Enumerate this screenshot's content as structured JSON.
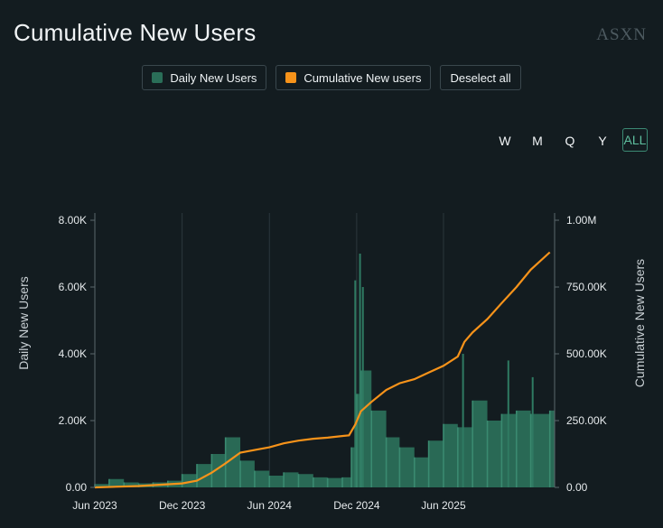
{
  "page": {
    "title": "Cumulative New Users",
    "brand": "ASXN"
  },
  "legend": {
    "daily_label": "Daily New Users",
    "cumulative_label": "Cumulative New users",
    "deselect_label": "Deselect all"
  },
  "ranges": [
    "W",
    "M",
    "Q",
    "Y",
    "ALL"
  ],
  "active_range": "ALL",
  "colors": {
    "daily": "#2a6e58",
    "cumulative": "#f7931a",
    "background": "#131c20"
  },
  "chart_data": {
    "type": "bar",
    "title": "Cumulative New Users",
    "x_tick_labels": [
      "Jun 2023",
      "Dec 2023",
      "Jun 2024",
      "Dec 2024",
      "Jun 2025"
    ],
    "y_left": {
      "label": "Daily New Users",
      "range": [
        0,
        8000
      ],
      "tick_labels": [
        "0.00",
        "2.00K",
        "4.00K",
        "6.00K",
        "8.00K"
      ]
    },
    "y_right": {
      "label": "Cumulative New Users",
      "range": [
        0,
        1000000
      ],
      "tick_labels": [
        "0.00",
        "250.00K",
        "500.00K",
        "750.00K",
        "1.00M"
      ]
    },
    "series": [
      {
        "name": "Daily New Users",
        "kind": "bar",
        "color": "#2a6e58",
        "points": [
          [
            "2023-06-01",
            100
          ],
          [
            "2023-07-01",
            250
          ],
          [
            "2023-08-01",
            150
          ],
          [
            "2023-09-01",
            120
          ],
          [
            "2023-10-01",
            150
          ],
          [
            "2023-11-01",
            200
          ],
          [
            "2023-12-01",
            400
          ],
          [
            "2024-01-01",
            700
          ],
          [
            "2024-02-01",
            1000
          ],
          [
            "2024-03-01",
            1500
          ],
          [
            "2024-04-01",
            800
          ],
          [
            "2024-05-01",
            500
          ],
          [
            "2024-06-01",
            350
          ],
          [
            "2024-07-01",
            450
          ],
          [
            "2024-08-01",
            400
          ],
          [
            "2024-09-01",
            300
          ],
          [
            "2024-10-01",
            280
          ],
          [
            "2024-11-01",
            300
          ],
          [
            "2024-11-20",
            1200
          ],
          [
            "2024-12-01",
            2800
          ],
          [
            "2024-12-10",
            3500
          ],
          [
            "2025-01-01",
            2300
          ],
          [
            "2025-02-01",
            1500
          ],
          [
            "2025-03-01",
            1200
          ],
          [
            "2025-04-01",
            900
          ],
          [
            "2025-05-01",
            1400
          ],
          [
            "2025-06-01",
            1900
          ],
          [
            "2025-07-01",
            1800
          ],
          [
            "2025-08-01",
            2600
          ],
          [
            "2025-09-01",
            2000
          ],
          [
            "2025-10-01",
            2200
          ],
          [
            "2025-11-01",
            2300
          ],
          [
            "2025-12-01",
            2200
          ],
          [
            "2026-01-10",
            2300
          ]
        ],
        "spikes": [
          [
            "2024-11-28",
            6200
          ],
          [
            "2024-12-08",
            7000
          ],
          [
            "2024-12-14",
            6000
          ],
          [
            "2025-07-12",
            4000
          ],
          [
            "2025-10-15",
            3800
          ],
          [
            "2025-12-05",
            3300
          ]
        ]
      },
      {
        "name": "Cumulative New users",
        "kind": "line",
        "color": "#f7931a",
        "points": [
          [
            "2023-06-01",
            0
          ],
          [
            "2023-09-01",
            5000
          ],
          [
            "2023-12-01",
            15000
          ],
          [
            "2024-01-01",
            25000
          ],
          [
            "2024-02-01",
            55000
          ],
          [
            "2024-03-01",
            90000
          ],
          [
            "2024-04-01",
            130000
          ],
          [
            "2024-05-01",
            140000
          ],
          [
            "2024-06-01",
            150000
          ],
          [
            "2024-07-01",
            165000
          ],
          [
            "2024-08-01",
            175000
          ],
          [
            "2024-09-01",
            182000
          ],
          [
            "2024-10-01",
            186000
          ],
          [
            "2024-11-15",
            195000
          ],
          [
            "2024-11-28",
            235000
          ],
          [
            "2024-12-10",
            285000
          ],
          [
            "2025-01-01",
            320000
          ],
          [
            "2025-02-01",
            365000
          ],
          [
            "2025-03-01",
            390000
          ],
          [
            "2025-04-01",
            405000
          ],
          [
            "2025-05-01",
            430000
          ],
          [
            "2025-06-01",
            455000
          ],
          [
            "2025-07-01",
            490000
          ],
          [
            "2025-07-15",
            545000
          ],
          [
            "2025-08-01",
            580000
          ],
          [
            "2025-09-01",
            630000
          ],
          [
            "2025-10-01",
            690000
          ],
          [
            "2025-11-01",
            750000
          ],
          [
            "2025-12-01",
            815000
          ],
          [
            "2026-01-10",
            880000
          ]
        ]
      }
    ]
  }
}
